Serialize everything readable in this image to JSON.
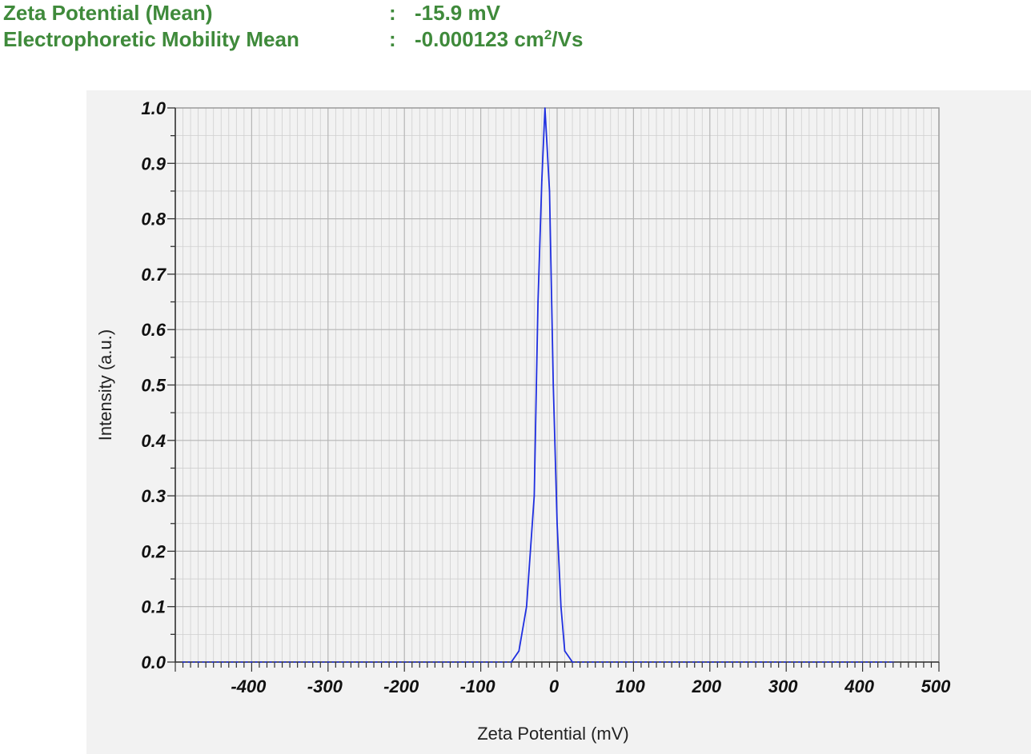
{
  "summary": {
    "rows": [
      {
        "label": "Zeta Potential (Mean)",
        "colon": ":",
        "value": "-15.9 mV",
        "unit_sup": "",
        "unit_tail": ""
      },
      {
        "label": "Electrophoretic Mobility Mean",
        "colon": ":",
        "value": "-0.000123 cm",
        "unit_sup": "2",
        "unit_tail": "/Vs"
      }
    ],
    "color": "#3f8a3b"
  },
  "chart_data": {
    "type": "line",
    "title": "",
    "xlabel": "Zeta Potential (mV)",
    "ylabel": "Intensity (a.u.)",
    "xlim": [
      -500,
      500
    ],
    "ylim": [
      0,
      1.0
    ],
    "x_ticks": [
      "-400",
      "-300",
      "-200",
      "-100",
      "0",
      "100",
      "200",
      "300",
      "400",
      "500"
    ],
    "x_tick_values": [
      -400,
      -300,
      -200,
      -100,
      0,
      100,
      200,
      300,
      400,
      500
    ],
    "y_ticks": [
      "0.0",
      "0.1",
      "0.2",
      "0.3",
      "0.4",
      "0.5",
      "0.6",
      "0.7",
      "0.8",
      "0.9",
      "1.0"
    ],
    "y_tick_values": [
      0,
      0.1,
      0.2,
      0.3,
      0.4,
      0.5,
      0.6,
      0.7,
      0.8,
      0.9,
      1.0
    ],
    "grid": true,
    "series": [
      {
        "color": "#1f2fe0",
        "x": [
          -490,
          -60,
          -50,
          -40,
          -30,
          -25,
          -20,
          -15.9,
          -10,
          -5,
          0,
          5,
          10,
          20,
          440
        ],
        "y": [
          0,
          0,
          0.02,
          0.1,
          0.3,
          0.65,
          0.87,
          1.0,
          0.85,
          0.5,
          0.25,
          0.1,
          0.02,
          0,
          0
        ]
      }
    ]
  }
}
